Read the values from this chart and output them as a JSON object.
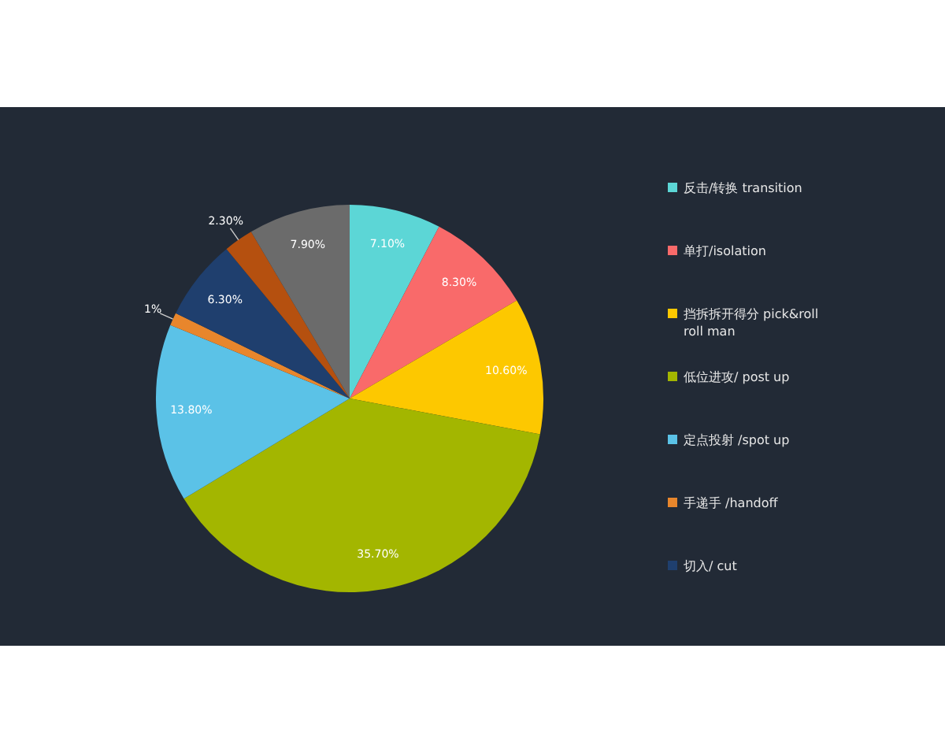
{
  "chart_data": {
    "type": "pie",
    "categories": [
      "反击/转换 transition",
      "单打/isolation",
      "挡拆拆开得分 pick&roll roll man",
      "低位进攻/ post up",
      "定点投射 /spot up",
      "手递手 /handoff",
      "切入/ cut",
      null,
      null
    ],
    "values": [
      7.1,
      8.3,
      10.6,
      35.7,
      13.8,
      1,
      6.3,
      2.3,
      7.9
    ],
    "value_labels": [
      "7.10%",
      "8.30%",
      "10.60%",
      "35.70%",
      "13.80%",
      "1%",
      "6.30%",
      "2.30%",
      "7.90%"
    ],
    "colors": [
      "#5cd6d6",
      "#f96a6a",
      "#fdc800",
      "#a3b600",
      "#5bc2e7",
      "#e8862c",
      "#1f3f6e",
      "#b5500f",
      "#6b6b6b"
    ],
    "legend": "right"
  }
}
